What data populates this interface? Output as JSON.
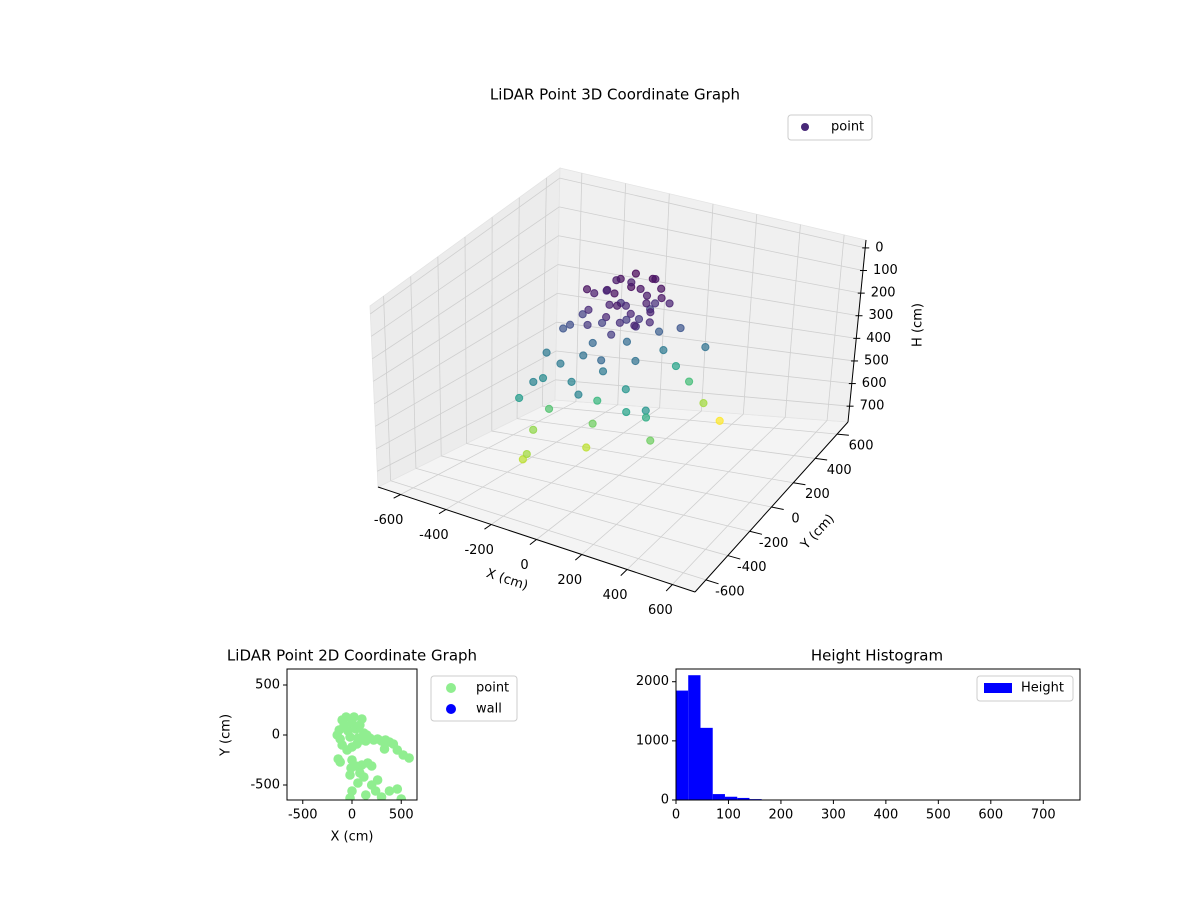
{
  "chart_data": [
    {
      "type": "scatter3d",
      "title": "LiDAR Point 3D Coordinate Graph",
      "x_label": "X (cm)",
      "y_label": "Y (cm)",
      "z_label": "H (cm)",
      "series": [
        {
          "name": "point",
          "color": "#482878",
          "colormap": "viridis",
          "x": [
            -267,
            -245,
            -317,
            -283,
            -270,
            -110,
            -97,
            -97,
            58,
            115,
            215,
            177,
            180,
            152,
            190,
            128,
            95,
            -30,
            -107,
            -192,
            -240,
            -233,
            -288,
            -130,
            -17,
            -15,
            73,
            105,
            263,
            173,
            -230,
            -202,
            -120,
            -18,
            92,
            -173,
            37,
            -100,
            -80,
            -50,
            0,
            20,
            50,
            80,
            100,
            -120,
            -30,
            30,
            60,
            120,
            -60,
            10,
            -140,
            90,
            -20,
            40,
            -90,
            130,
            -10,
            70,
            -110,
            0,
            140,
            -40,
            60,
            -70,
            20,
            110,
            -130,
            -150,
            150,
            -60,
            30
          ],
          "y": [
            -313,
            -321,
            -139,
            -313,
            -96,
            -78,
            -52,
            -17,
            -70,
            -170,
            -196,
            -119,
            -82,
            426,
            507,
            336,
            279,
            -297,
            -212,
            -148,
            -200,
            -290,
            -87,
            -78,
            -139,
            -126,
            -24,
            148,
            204,
            157,
            -61,
            -57,
            -21,
            71,
            130,
            -10,
            152,
            50,
            120,
            -20,
            60,
            100,
            -30,
            40,
            120,
            -60,
            150,
            -80,
            80,
            0,
            90,
            10,
            20,
            -60,
            -100,
            160,
            -120,
            70,
            40,
            130,
            140,
            -50,
            -40,
            0,
            20,
            -40,
            -130,
            -110,
            100,
            -20,
            100,
            170,
            200
          ],
          "z": [
            650,
            620,
            600,
            400,
            520,
            650,
            560,
            480,
            380,
            420,
            380,
            450,
            560,
            620,
            720,
            500,
            420,
            330,
            330,
            300,
            350,
            330,
            300,
            280,
            250,
            300,
            280,
            300,
            280,
            200,
            200,
            180,
            250,
            260,
            220,
            150,
            150,
            60,
            40,
            80,
            30,
            50,
            90,
            70,
            40,
            100,
            20,
            110,
            60,
            80,
            120,
            140,
            70,
            120,
            90,
            30,
            130,
            50,
            100,
            110,
            60,
            60,
            100,
            40,
            130,
            150,
            140,
            90,
            90,
            40,
            80,
            70,
            50
          ]
        }
      ],
      "xlim": [
        -700,
        700
      ],
      "ylim": [
        -700,
        700
      ],
      "zlim": [
        -35,
        770
      ],
      "z_inverted": true,
      "xticks": [
        -600,
        -400,
        -200,
        0,
        200,
        400,
        600
      ],
      "yticks": [
        -600,
        -400,
        -200,
        0,
        200,
        400,
        600
      ],
      "zticks": [
        0,
        100,
        200,
        300,
        400,
        500,
        600,
        700
      ],
      "grid": true,
      "legend": "upper right"
    },
    {
      "type": "scatter",
      "title": "LiDAR Point 2D Coordinate Graph",
      "x_label": "X (cm)",
      "y_label": "Y (cm)",
      "series": [
        {
          "name": "point",
          "color": "#90ee90",
          "x": [
            -150,
            -130,
            -120,
            -100,
            -80,
            -60,
            -40,
            -20,
            0,
            20,
            40,
            60,
            80,
            100,
            120,
            140,
            -100,
            -50,
            0,
            50,
            100,
            -140,
            -120,
            150,
            180,
            220,
            260,
            300,
            340,
            380,
            420,
            460,
            520,
            580,
            330,
            0,
            40,
            -20,
            100,
            160,
            200,
            120,
            60,
            0,
            -20,
            200,
            260,
            300,
            380,
            460,
            500,
            140,
            240,
            -10,
            80
          ],
          "y": [
            0,
            50,
            -40,
            150,
            100,
            180,
            40,
            -20,
            120,
            180,
            60,
            -30,
            100,
            160,
            20,
            -60,
            -100,
            -150,
            -120,
            -90,
            -50,
            -240,
            -270,
            0,
            -30,
            -50,
            -40,
            -60,
            -50,
            -70,
            -90,
            -150,
            -200,
            -230,
            -140,
            -250,
            -310,
            -400,
            -300,
            -280,
            -310,
            -420,
            -480,
            -560,
            -630,
            -500,
            -450,
            -620,
            -560,
            -540,
            -640,
            -600,
            -560,
            -330,
            -380
          ]
        },
        {
          "name": "wall",
          "color": "#0000ff",
          "x": [],
          "y": []
        }
      ],
      "xlim": [
        -660,
        660
      ],
      "ylim": [
        -650,
        660
      ],
      "xticks": [
        -500,
        0,
        500
      ],
      "yticks": [
        -500,
        0,
        500
      ],
      "grid": false,
      "legend": "outside right"
    },
    {
      "type": "histogram",
      "title": "Height Histogram",
      "series": [
        {
          "name": "Height",
          "color": "#0000ff",
          "bins": [
            0,
            23.3,
            46.7,
            70,
            93.3,
            116.7,
            140,
            163.3,
            186.7,
            210,
            233.3,
            256.7,
            280,
            303.3,
            326.7,
            350,
            373.3,
            396.7,
            420,
            443.3,
            466.7,
            490,
            513.3,
            536.7,
            560,
            583.3,
            606.7,
            630,
            653.3,
            676.7,
            700
          ],
          "values": [
            1850,
            2110,
            1220,
            100,
            55,
            35,
            15,
            5,
            3,
            2,
            2,
            1,
            1,
            1,
            1,
            0,
            1,
            0,
            1,
            0,
            0,
            1,
            0,
            0,
            1,
            0,
            0,
            1,
            0,
            1
          ]
        }
      ],
      "xlim": [
        0,
        770
      ],
      "ylim": [
        0,
        2215
      ],
      "xticks": [
        0,
        100,
        200,
        300,
        400,
        500,
        600,
        700
      ],
      "yticks": [
        0,
        1000,
        2000
      ],
      "grid": false,
      "legend": "upper right"
    }
  ]
}
